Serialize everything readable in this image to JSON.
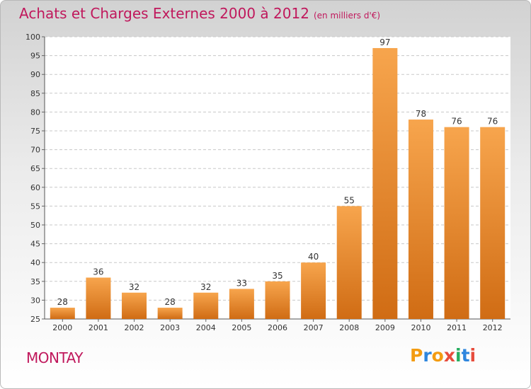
{
  "header": {
    "title": "Achats et Charges Externes 2000 à 2012",
    "unit": "(en milliers d'€)"
  },
  "footer": {
    "town": "MONTAY",
    "logo": {
      "letters": [
        "P",
        "r",
        "o",
        "x",
        "i",
        "t",
        "i"
      ],
      "colors": [
        "#f39c12",
        "#2e86de",
        "#f39c12",
        "#e74c3c",
        "#27ae60",
        "#2e86de",
        "#e74c3c"
      ]
    }
  },
  "chart_data": {
    "type": "bar",
    "title": "Achats et Charges Externes 2000 à 2012",
    "subtitle": "(en milliers d'€)",
    "categories": [
      "2000",
      "2001",
      "2002",
      "2003",
      "2004",
      "2005",
      "2006",
      "2007",
      "2008",
      "2009",
      "2010",
      "2011",
      "2012"
    ],
    "values": [
      28,
      36,
      32,
      28,
      32,
      33,
      35,
      40,
      55,
      97,
      78,
      76,
      76
    ],
    "ylim": [
      25,
      100
    ],
    "yticks": [
      25,
      30,
      35,
      40,
      45,
      50,
      55,
      60,
      65,
      70,
      75,
      80,
      85,
      90,
      95,
      100
    ],
    "grid": true,
    "bar_color": "#f7a54d",
    "bar_color_dark": "#d06c14"
  }
}
